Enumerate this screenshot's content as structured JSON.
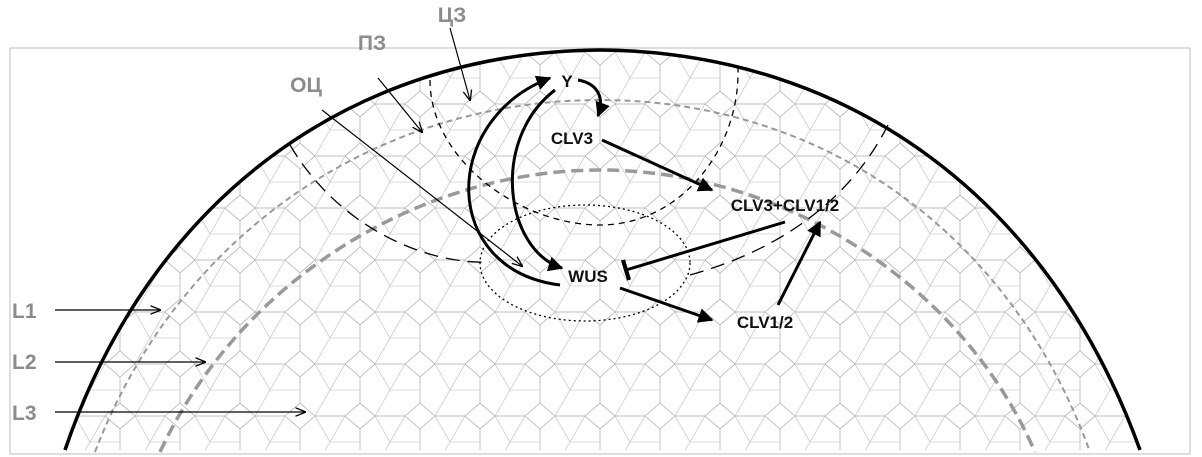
{
  "zones": {
    "cz": "ЦЗ",
    "pz": "ПЗ",
    "oc": "ОЦ"
  },
  "layers": [
    "L1",
    "L2",
    "L3"
  ],
  "nodes": {
    "y": "Y",
    "clv3": "CLV3",
    "complex": "CLV3+CLV1/2",
    "wus": "WUS",
    "clv12": "CLV1/2"
  }
}
